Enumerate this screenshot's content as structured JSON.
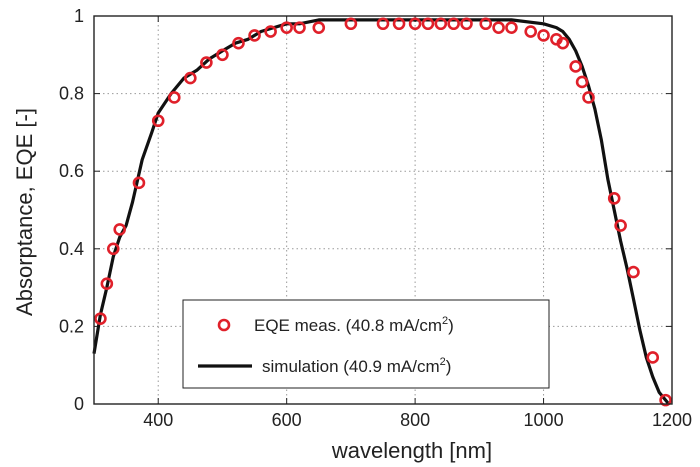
{
  "chart_data": {
    "type": "line",
    "xlabel": "wavelength [nm]",
    "ylabel": "Absorptance, EQE [-]",
    "xlim": [
      300,
      1200
    ],
    "ylim": [
      0,
      1
    ],
    "x_ticks": [
      400,
      600,
      800,
      1000,
      1200
    ],
    "y_ticks": [
      0,
      0.2,
      0.4,
      0.6,
      0.8,
      1
    ],
    "x_tick_labels": [
      "400",
      "600",
      "800",
      "1000",
      "1200"
    ],
    "y_tick_labels": [
      "0",
      "0.2",
      "0.4",
      "0.6",
      "0.8",
      "1"
    ],
    "grid": true,
    "legend_position": "bottom-center",
    "series": [
      {
        "name": "EQE meas. (40.8 mA/cm2)",
        "legend_prefix": "EQE meas. (40.8 mA/cm",
        "legend_sup": "2",
        "legend_suffix": ")",
        "style": "markers",
        "color": "#e0202a",
        "x": [
          310,
          320,
          330,
          340,
          370,
          400,
          425,
          450,
          475,
          500,
          525,
          550,
          575,
          600,
          620,
          650,
          700,
          750,
          775,
          800,
          820,
          840,
          860,
          880,
          910,
          930,
          950,
          980,
          1000,
          1020,
          1030,
          1050,
          1060,
          1070,
          1110,
          1120,
          1140,
          1170,
          1190
        ],
        "y": [
          0.22,
          0.31,
          0.4,
          0.45,
          0.57,
          0.73,
          0.79,
          0.84,
          0.88,
          0.9,
          0.93,
          0.95,
          0.96,
          0.97,
          0.97,
          0.97,
          0.98,
          0.98,
          0.98,
          0.98,
          0.98,
          0.98,
          0.98,
          0.98,
          0.98,
          0.97,
          0.97,
          0.96,
          0.95,
          0.94,
          0.93,
          0.87,
          0.83,
          0.79,
          0.53,
          0.46,
          0.34,
          0.12,
          0.01
        ]
      },
      {
        "name": "simulation (40.9 mA/cm2)",
        "legend_prefix": "simulation (40.9 mA/cm",
        "legend_sup": "2",
        "legend_suffix": ")",
        "style": "line",
        "color": "#111111",
        "x": [
          300,
          310,
          320,
          330,
          340,
          350,
          360,
          375,
          390,
          400,
          420,
          440,
          460,
          480,
          500,
          520,
          540,
          560,
          580,
          600,
          620,
          650,
          700,
          750,
          800,
          850,
          900,
          950,
          1000,
          1020,
          1030,
          1040,
          1050,
          1060,
          1070,
          1080,
          1090,
          1100,
          1110,
          1120,
          1130,
          1140,
          1150,
          1160,
          1170,
          1180,
          1190,
          1195
        ],
        "y": [
          0.13,
          0.23,
          0.3,
          0.38,
          0.43,
          0.46,
          0.52,
          0.63,
          0.7,
          0.75,
          0.8,
          0.84,
          0.86,
          0.89,
          0.91,
          0.93,
          0.94,
          0.96,
          0.97,
          0.98,
          0.98,
          0.99,
          0.99,
          0.99,
          0.99,
          0.99,
          0.99,
          0.99,
          0.98,
          0.97,
          0.96,
          0.94,
          0.91,
          0.87,
          0.82,
          0.76,
          0.68,
          0.58,
          0.5,
          0.42,
          0.35,
          0.27,
          0.19,
          0.12,
          0.07,
          0.03,
          0.01,
          0.0
        ]
      }
    ]
  }
}
